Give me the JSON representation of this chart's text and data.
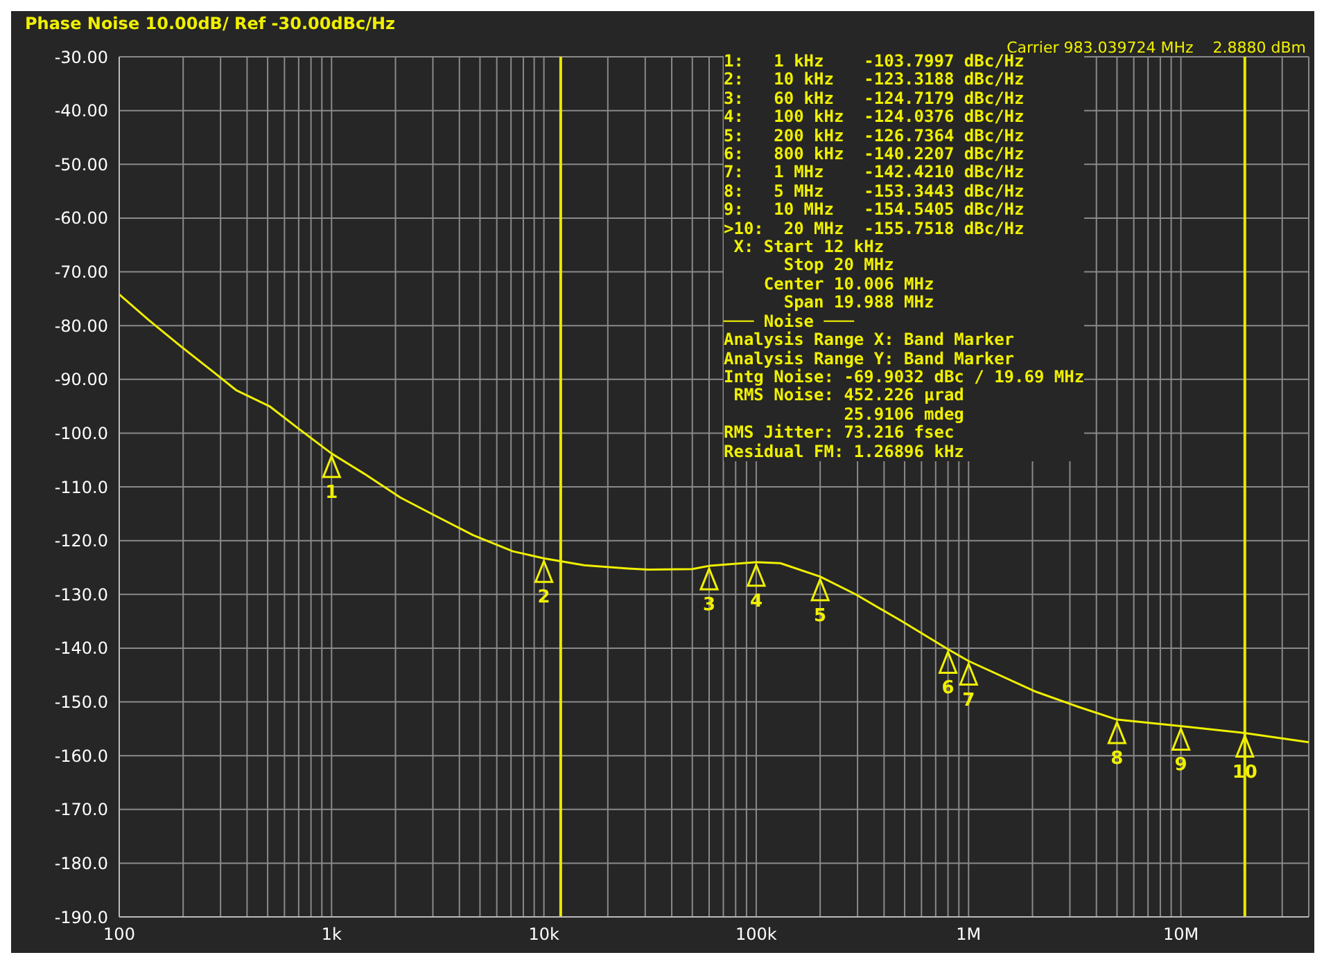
{
  "chart_data": {
    "type": "line",
    "title": "Phase Noise 10.00dB/ Ref -30.00dBc/Hz",
    "xlim": [
      100,
      40000000
    ],
    "xticks": [
      {
        "value": 100,
        "label": "100"
      },
      {
        "value": 200,
        "label": null
      },
      {
        "value": 300,
        "label": null
      },
      {
        "value": 400,
        "label": null
      },
      {
        "value": 500,
        "label": null
      },
      {
        "value": 600,
        "label": null
      },
      {
        "value": 700,
        "label": null
      },
      {
        "value": 800,
        "label": null
      },
      {
        "value": 900,
        "label": null
      },
      {
        "value": 1000,
        "label": "1k"
      },
      {
        "value": 2000,
        "label": null
      },
      {
        "value": 3000,
        "label": null
      },
      {
        "value": 4000,
        "label": null
      },
      {
        "value": 5000,
        "label": null
      },
      {
        "value": 6000,
        "label": null
      },
      {
        "value": 7000,
        "label": null
      },
      {
        "value": 8000,
        "label": null
      },
      {
        "value": 9000,
        "label": null
      },
      {
        "value": 10000,
        "label": "10k"
      },
      {
        "value": 20000,
        "label": null
      },
      {
        "value": 30000,
        "label": null
      },
      {
        "value": 40000,
        "label": null
      },
      {
        "value": 50000,
        "label": null
      },
      {
        "value": 60000,
        "label": null
      },
      {
        "value": 70000,
        "label": null
      },
      {
        "value": 80000,
        "label": null
      },
      {
        "value": 90000,
        "label": null
      },
      {
        "value": 100000,
        "label": "100k"
      },
      {
        "value": 200000,
        "label": null
      },
      {
        "value": 300000,
        "label": null
      },
      {
        "value": 400000,
        "label": null
      },
      {
        "value": 500000,
        "label": null
      },
      {
        "value": 600000,
        "label": null
      },
      {
        "value": 700000,
        "label": null
      },
      {
        "value": 800000,
        "label": null
      },
      {
        "value": 900000,
        "label": null
      },
      {
        "value": 1000000,
        "label": "1M"
      },
      {
        "value": 2000000,
        "label": null
      },
      {
        "value": 3000000,
        "label": null
      },
      {
        "value": 4000000,
        "label": null
      },
      {
        "value": 5000000,
        "label": null
      },
      {
        "value": 6000000,
        "label": null
      },
      {
        "value": 7000000,
        "label": null
      },
      {
        "value": 8000000,
        "label": null
      },
      {
        "value": 9000000,
        "label": null
      },
      {
        "value": 10000000,
        "label": "10M"
      },
      {
        "value": 20000000,
        "label": null
      },
      {
        "value": 30000000,
        "label": null
      }
    ],
    "log": "x",
    "ylim": [
      -190,
      -30
    ],
    "yticks": [
      {
        "value": -30,
        "label": "-30.00"
      },
      {
        "value": -40,
        "label": "-40.00"
      },
      {
        "value": -50,
        "label": "-50.00"
      },
      {
        "value": -60,
        "label": "-60.00"
      },
      {
        "value": -70,
        "label": "-70.00"
      },
      {
        "value": -80,
        "label": "-80.00"
      },
      {
        "value": -90,
        "label": "-90.00"
      },
      {
        "value": -100,
        "label": "-100.0"
      },
      {
        "value": -110,
        "label": "-110.0"
      },
      {
        "value": -120,
        "label": "-120.0"
      },
      {
        "value": -130,
        "label": "-130.0"
      },
      {
        "value": -140,
        "label": "-140.0"
      },
      {
        "value": -150,
        "label": "-150.0"
      },
      {
        "value": -160,
        "label": "-160.0"
      },
      {
        "value": -170,
        "label": "-170.0"
      },
      {
        "value": -180,
        "label": "-180.0"
      },
      {
        "value": -190,
        "label": "-190.0"
      }
    ],
    "grid": true,
    "series": [
      {
        "color": "#f0f000",
        "x": [
          100,
          138,
          197,
          275,
          355,
          510,
          690,
          1000,
          1430,
          2110,
          3160,
          4650,
          7150,
          10000,
          15500,
          25000,
          31000,
          50000,
          60000,
          100000,
          130000,
          200000,
          294000,
          485000,
          800000,
          1000000,
          2040000,
          3330000,
          5000000,
          10000000,
          20000000,
          40000000
        ],
        "values": [
          -74.2,
          -79,
          -84,
          -88.5,
          -92,
          -95,
          -99,
          -103.8,
          -107.6,
          -112,
          -115.6,
          -119,
          -122,
          -123.3,
          -124.6,
          -125.2,
          -125.4,
          -125.3,
          -124.7,
          -124,
          -124.2,
          -126.7,
          -130,
          -135,
          -140.2,
          -142.4,
          -148,
          -151,
          -153.3,
          -154.5,
          -155.8,
          -157.5
        ]
      }
    ],
    "ref_lines": [
      {
        "axis": "x",
        "value": 12000,
        "color": "#e8e800"
      },
      {
        "axis": "x",
        "value": 20000000,
        "color": "#e8e800"
      }
    ],
    "annotations": [
      {
        "text": "1",
        "x": 1000,
        "y": -103.8
      },
      {
        "text": "2",
        "x": 10000,
        "y": -123.3
      },
      {
        "text": "3",
        "x": 60000,
        "y": -124.7
      },
      {
        "text": "4",
        "x": 100000,
        "y": -124
      },
      {
        "text": "5",
        "x": 200000,
        "y": -126.7
      },
      {
        "text": "6",
        "x": 800000,
        "y": -140.2
      },
      {
        "text": "7",
        "x": 1000000,
        "y": -142.4
      },
      {
        "text": "8",
        "x": 5000000,
        "y": -153.3
      },
      {
        "text": "9",
        "x": 10000000,
        "y": -154.5
      },
      {
        "text": "10",
        "x": 20000000,
        "y": -155.8
      },
      "Carrier 983.039724 MHz",
      "2.8880 dBm",
      "1:   1 kHz    -103.7997 dBc/Hz",
      "2:   10 kHz   -123.3188 dBc/Hz",
      "3:   60 kHz   -124.7179 dBc/Hz",
      "4:   100 kHz  -124.0376 dBc/Hz",
      "5:   200 kHz  -126.7364 dBc/Hz",
      "6:   800 kHz  -140.2207 dBc/Hz",
      "7:   1 MHz    -142.4210 dBc/Hz",
      "8:   5 MHz    -153.3443 dBc/Hz",
      "9:   10 MHz   -154.5405 dBc/Hz",
      ">10:  20 MHz  -155.7518 dBc/Hz",
      " X: Start 12 kHz",
      "      Stop 20 MHz",
      "    Center 10.006 MHz",
      "      Span 19.988 MHz",
      "─── Noise ───",
      "Analysis Range X: Band Marker",
      "Analysis Range Y: Band Marker",
      "Intg Noise: -69.9032 dBc / 19.69 MHz",
      " RMS Noise: 452.226 µrad",
      "            25.9106 mdeg",
      "RMS Jitter: 73.216 fsec",
      "Residual FM: 1.26896 kHz"
    ]
  }
}
